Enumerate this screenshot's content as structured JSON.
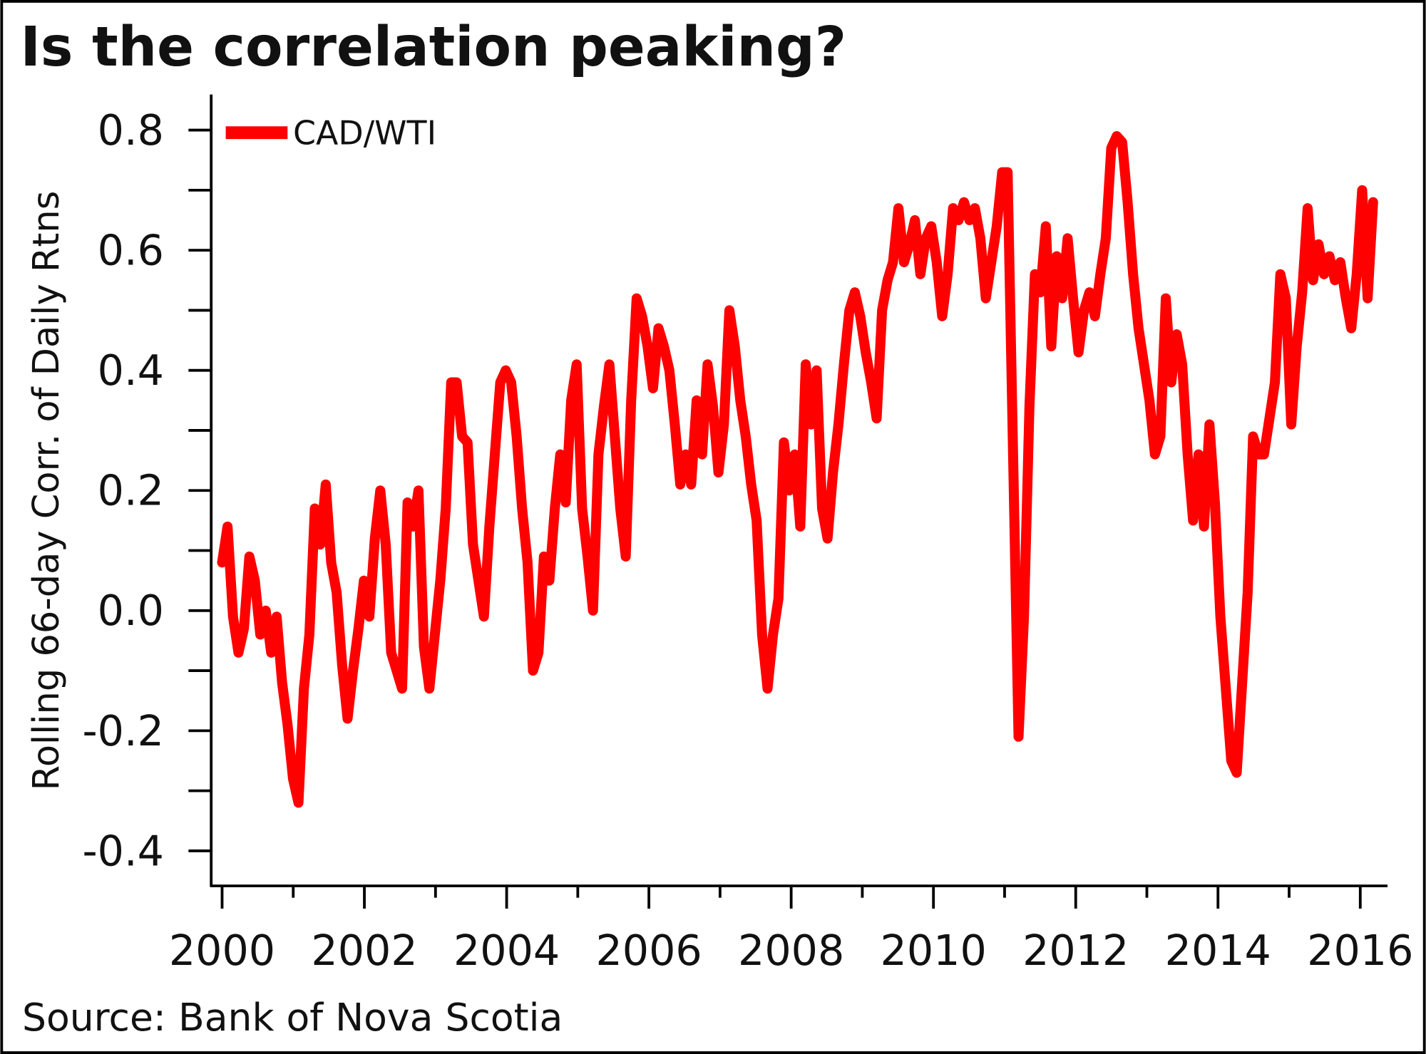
{
  "chart_data": {
    "type": "line",
    "title": "Is the correlation peaking?",
    "ylabel": "Rolling 66-day Corr. of Daily Rtns",
    "xlabel": "",
    "source": "Source: Bank of Nova Scotia",
    "legend": {
      "position": "top-left",
      "entries": [
        "CAD/WTI"
      ]
    },
    "ylim": [
      -0.4,
      0.8
    ],
    "xlim": [
      2000,
      2016.2
    ],
    "y_ticks": [
      "0.8",
      "0.6",
      "0.4",
      "0.2",
      "0.0",
      "-0.2",
      "-0.4"
    ],
    "y_tick_values": [
      0.8,
      0.6,
      0.4,
      0.2,
      0.0,
      -0.2,
      -0.4
    ],
    "x_ticks": [
      "2000",
      "2002",
      "2004",
      "2006",
      "2008",
      "2010",
      "2012",
      "2014",
      "2016"
    ],
    "x_tick_values": [
      2000,
      2002,
      2004,
      2006,
      2008,
      2010,
      2012,
      2014,
      2016
    ],
    "grid": false,
    "series": [
      {
        "name": "CAD/WTI",
        "color": "#ff0000",
        "x_start": 2000.0,
        "x_end": 2016.18,
        "values": [
          0.08,
          0.14,
          -0.01,
          -0.07,
          -0.03,
          0.09,
          0.05,
          -0.04,
          0.0,
          -0.07,
          -0.01,
          -0.12,
          -0.19,
          -0.28,
          -0.32,
          -0.13,
          -0.04,
          0.17,
          0.11,
          0.21,
          0.08,
          0.03,
          -0.09,
          -0.18,
          -0.1,
          -0.03,
          0.05,
          -0.01,
          0.12,
          0.2,
          0.11,
          -0.07,
          -0.1,
          -0.13,
          0.18,
          0.14,
          0.2,
          -0.06,
          -0.13,
          -0.04,
          0.05,
          0.17,
          0.38,
          0.38,
          0.29,
          0.28,
          0.11,
          0.05,
          -0.01,
          0.14,
          0.26,
          0.38,
          0.4,
          0.38,
          0.29,
          0.17,
          0.08,
          -0.1,
          -0.07,
          0.09,
          0.05,
          0.17,
          0.26,
          0.18,
          0.35,
          0.41,
          0.17,
          0.09,
          0.0,
          0.26,
          0.34,
          0.41,
          0.29,
          0.17,
          0.09,
          0.35,
          0.52,
          0.49,
          0.44,
          0.37,
          0.47,
          0.44,
          0.4,
          0.31,
          0.21,
          0.26,
          0.21,
          0.35,
          0.26,
          0.41,
          0.34,
          0.23,
          0.31,
          0.5,
          0.44,
          0.35,
          0.29,
          0.21,
          0.15,
          -0.04,
          -0.13,
          -0.04,
          0.02,
          0.28,
          0.2,
          0.26,
          0.14,
          0.41,
          0.31,
          0.4,
          0.17,
          0.12,
          0.23,
          0.31,
          0.41,
          0.5,
          0.53,
          0.49,
          0.43,
          0.38,
          0.32,
          0.5,
          0.55,
          0.58,
          0.67,
          0.58,
          0.61,
          0.65,
          0.56,
          0.62,
          0.64,
          0.58,
          0.49,
          0.56,
          0.67,
          0.65,
          0.68,
          0.65,
          0.67,
          0.62,
          0.52,
          0.58,
          0.64,
          0.73,
          0.73,
          0.26,
          -0.21,
          -0.01,
          0.34,
          0.56,
          0.53,
          0.64,
          0.44,
          0.59,
          0.52,
          0.62,
          0.52,
          0.43,
          0.5,
          0.53,
          0.49,
          0.56,
          0.62,
          0.77,
          0.79,
          0.78,
          0.68,
          0.56,
          0.47,
          0.41,
          0.35,
          0.26,
          0.29,
          0.52,
          0.38,
          0.46,
          0.41,
          0.26,
          0.15,
          0.26,
          0.14,
          0.31,
          0.18,
          -0.01,
          -0.13,
          -0.25,
          -0.27,
          -0.12,
          0.03,
          0.29,
          0.26,
          0.26,
          0.32,
          0.38,
          0.56,
          0.52,
          0.31,
          0.44,
          0.53,
          0.67,
          0.55,
          0.61,
          0.56,
          0.59,
          0.55,
          0.58,
          0.52,
          0.47,
          0.56,
          0.7,
          0.52,
          0.68
        ]
      }
    ]
  }
}
